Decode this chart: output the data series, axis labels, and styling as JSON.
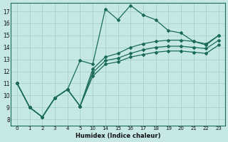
{
  "xlabel": "Humidex (Indice chaleur)",
  "bg_color": "#c5e8e5",
  "grid_color": "#aad4d0",
  "line_color": "#1a6b5a",
  "xtick_labels": [
    "0",
    "1",
    "2",
    "3",
    "4",
    "5",
    "10",
    "14",
    "15",
    "16",
    "17",
    "18",
    "19",
    "20",
    "21",
    "22",
    "23"
  ],
  "yticks": [
    8,
    9,
    10,
    11,
    12,
    13,
    14,
    15,
    16,
    17
  ],
  "ylim": [
    7.5,
    17.7
  ],
  "series": [
    {
      "y": [
        11.0,
        9.0,
        8.2,
        9.8,
        10.5,
        12.9,
        12.6,
        17.2,
        16.3,
        17.5,
        16.7,
        16.3,
        15.4,
        15.2,
        14.5,
        14.2,
        15.0
      ]
    },
    {
      "y": [
        11.0,
        9.0,
        8.2,
        9.8,
        10.5,
        9.1,
        12.2,
        13.2,
        13.5,
        14.0,
        14.3,
        14.5,
        14.6,
        14.6,
        14.5,
        14.3,
        15.0
      ]
    },
    {
      "y": [
        11.0,
        9.0,
        8.2,
        9.8,
        10.5,
        9.1,
        11.9,
        12.9,
        13.1,
        13.5,
        13.8,
        14.0,
        14.1,
        14.1,
        14.0,
        13.9,
        14.6
      ]
    },
    {
      "y": [
        11.0,
        9.0,
        8.2,
        9.8,
        10.5,
        9.1,
        11.6,
        12.6,
        12.8,
        13.2,
        13.4,
        13.6,
        13.7,
        13.7,
        13.6,
        13.5,
        14.2
      ]
    }
  ]
}
